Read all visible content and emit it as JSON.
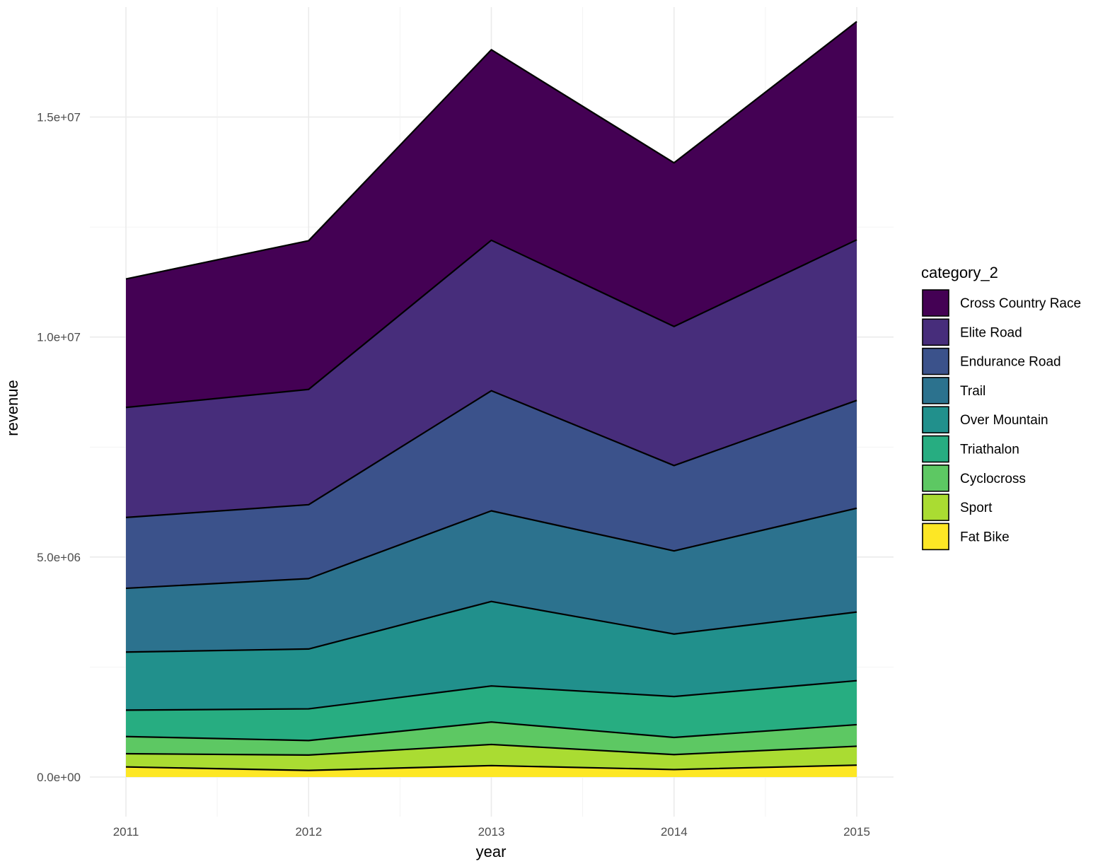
{
  "chart_data": {
    "type": "area",
    "stacked": true,
    "x": [
      2011,
      2012,
      2013,
      2014,
      2015
    ],
    "xlabel": "year",
    "ylabel": "revenue",
    "ylim": [
      -900000,
      17500000
    ],
    "y_ticks": [
      {
        "value": 0,
        "label": "0.0e+00"
      },
      {
        "value": 5000000,
        "label": "5.0e+06"
      },
      {
        "value": 10000000,
        "label": "1.0e+07"
      },
      {
        "value": 15000000,
        "label": "1.5e+07"
      }
    ],
    "x_ticks": [
      {
        "value": 2011,
        "label": "2011"
      },
      {
        "value": 2012,
        "label": "2012"
      },
      {
        "value": 2013,
        "label": "2013"
      },
      {
        "value": 2014,
        "label": "2014"
      },
      {
        "value": 2015,
        "label": "2015"
      }
    ],
    "grid": true,
    "legend": {
      "title": "category_2",
      "position": "right"
    },
    "series": [
      {
        "name": "Fat Bike",
        "color": "#FDE725",
        "values": [
          230000,
          150000,
          260000,
          170000,
          270000
        ]
      },
      {
        "name": "Sport",
        "color": "#AADC32",
        "values": [
          300000,
          350000,
          480000,
          340000,
          430000
        ]
      },
      {
        "name": "Cyclocross",
        "color": "#5DC863",
        "values": [
          390000,
          330000,
          510000,
          390000,
          490000
        ]
      },
      {
        "name": "Triathalon",
        "color": "#27AD81",
        "values": [
          600000,
          720000,
          820000,
          930000,
          1000000
        ]
      },
      {
        "name": "Over Mountain",
        "color": "#21908C",
        "values": [
          1320000,
          1360000,
          1920000,
          1420000,
          1560000
        ]
      },
      {
        "name": "Trail",
        "color": "#2C728E",
        "values": [
          1450000,
          1600000,
          2060000,
          1890000,
          2360000
        ]
      },
      {
        "name": "Endurance Road",
        "color": "#3B528B",
        "values": [
          1610000,
          1680000,
          2730000,
          1940000,
          2450000
        ]
      },
      {
        "name": "Elite Road",
        "color": "#472D7B",
        "values": [
          2500000,
          2620000,
          3420000,
          3160000,
          3650000
        ]
      },
      {
        "name": "Cross Country Race",
        "color": "#440154",
        "values": [
          2920000,
          3380000,
          4330000,
          3720000,
          4960000
        ]
      }
    ]
  }
}
